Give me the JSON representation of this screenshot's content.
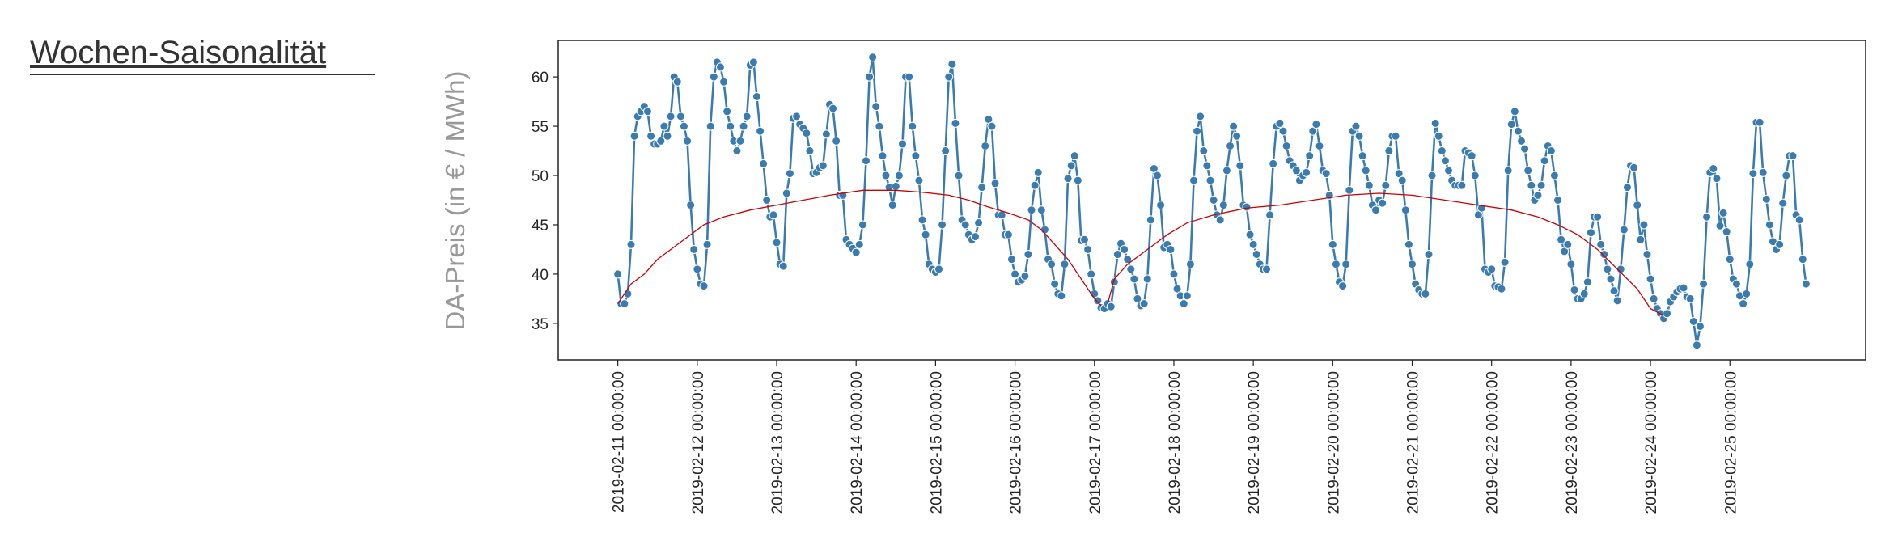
{
  "header": {
    "title": "Wochen-Saisonalität"
  },
  "chart_data": {
    "type": "line",
    "ylabel": "DA-Preis (in € / MWh)",
    "xlim": [
      "2019-02-10 06:00:00",
      "2019-02-26 17:00:00"
    ],
    "xticks": [
      "2019-02-11 00:00:00",
      "2019-02-12 00:00:00",
      "2019-02-13 00:00:00",
      "2019-02-14 00:00:00",
      "2019-02-15 00:00:00",
      "2019-02-16 00:00:00",
      "2019-02-17 00:00:00",
      "2019-02-18 00:00:00",
      "2019-02-19 00:00:00",
      "2019-02-20 00:00:00",
      "2019-02-21 00:00:00",
      "2019-02-22 00:00:00",
      "2019-02-23 00:00:00",
      "2019-02-24 00:00:00",
      "2019-02-25 00:00:00"
    ],
    "ylim": [
      31.3,
      63.7
    ],
    "yticks": [
      35,
      40,
      45,
      50,
      55,
      60
    ],
    "grid": false,
    "x": [
      "2019-02-11 00:00:00",
      "2019-02-11 01:00:00",
      "2019-02-11 02:00:00",
      "2019-02-11 03:00:00",
      "2019-02-11 04:00:00",
      "2019-02-11 05:00:00",
      "2019-02-11 06:00:00",
      "2019-02-11 07:00:00",
      "2019-02-11 08:00:00",
      "2019-02-11 09:00:00",
      "2019-02-11 10:00:00",
      "2019-02-11 11:00:00",
      "2019-02-11 12:00:00",
      "2019-02-11 13:00:00",
      "2019-02-11 14:00:00",
      "2019-02-11 15:00:00",
      "2019-02-11 16:00:00",
      "2019-02-11 17:00:00",
      "2019-02-11 18:00:00",
      "2019-02-11 19:00:00",
      "2019-02-11 20:00:00",
      "2019-02-11 21:00:00",
      "2019-02-11 22:00:00",
      "2019-02-11 23:00:00",
      "2019-02-12 00:00:00",
      "2019-02-12 01:00:00",
      "2019-02-12 02:00:00",
      "2019-02-12 03:00:00",
      "2019-02-12 04:00:00",
      "2019-02-12 05:00:00",
      "2019-02-12 06:00:00",
      "2019-02-12 07:00:00",
      "2019-02-12 08:00:00",
      "2019-02-12 09:00:00",
      "2019-02-12 10:00:00",
      "2019-02-12 11:00:00",
      "2019-02-12 12:00:00",
      "2019-02-12 13:00:00",
      "2019-02-12 14:00:00",
      "2019-02-12 15:00:00",
      "2019-02-12 16:00:00",
      "2019-02-12 17:00:00",
      "2019-02-12 18:00:00",
      "2019-02-12 19:00:00",
      "2019-02-12 20:00:00",
      "2019-02-12 21:00:00",
      "2019-02-12 22:00:00",
      "2019-02-12 23:00:00",
      "2019-02-13 00:00:00",
      "2019-02-13 01:00:00",
      "2019-02-13 02:00:00",
      "2019-02-13 03:00:00",
      "2019-02-13 04:00:00",
      "2019-02-13 05:00:00",
      "2019-02-13 06:00:00",
      "2019-02-13 07:00:00",
      "2019-02-13 08:00:00",
      "2019-02-13 09:00:00",
      "2019-02-13 10:00:00",
      "2019-02-13 11:00:00",
      "2019-02-13 12:00:00",
      "2019-02-13 13:00:00",
      "2019-02-13 14:00:00",
      "2019-02-13 15:00:00",
      "2019-02-13 16:00:00",
      "2019-02-13 17:00:00",
      "2019-02-13 18:00:00",
      "2019-02-13 19:00:00",
      "2019-02-13 20:00:00",
      "2019-02-13 21:00:00",
      "2019-02-13 22:00:00",
      "2019-02-13 23:00:00",
      "2019-02-14 00:00:00",
      "2019-02-14 01:00:00",
      "2019-02-14 02:00:00",
      "2019-02-14 03:00:00",
      "2019-02-14 04:00:00",
      "2019-02-14 05:00:00",
      "2019-02-14 06:00:00",
      "2019-02-14 07:00:00",
      "2019-02-14 08:00:00",
      "2019-02-14 09:00:00",
      "2019-02-14 10:00:00",
      "2019-02-14 11:00:00",
      "2019-02-14 12:00:00",
      "2019-02-14 13:00:00",
      "2019-02-14 14:00:00",
      "2019-02-14 15:00:00",
      "2019-02-14 16:00:00",
      "2019-02-14 17:00:00",
      "2019-02-14 18:00:00",
      "2019-02-14 19:00:00",
      "2019-02-14 20:00:00",
      "2019-02-14 21:00:00",
      "2019-02-14 22:00:00",
      "2019-02-14 23:00:00",
      "2019-02-15 00:00:00",
      "2019-02-15 01:00:00",
      "2019-02-15 02:00:00",
      "2019-02-15 03:00:00",
      "2019-02-15 04:00:00",
      "2019-02-15 05:00:00",
      "2019-02-15 06:00:00",
      "2019-02-15 07:00:00",
      "2019-02-15 08:00:00",
      "2019-02-15 09:00:00",
      "2019-02-15 10:00:00",
      "2019-02-15 11:00:00",
      "2019-02-15 12:00:00",
      "2019-02-15 13:00:00",
      "2019-02-15 14:00:00",
      "2019-02-15 15:00:00",
      "2019-02-15 16:00:00",
      "2019-02-15 17:00:00",
      "2019-02-15 18:00:00",
      "2019-02-15 19:00:00",
      "2019-02-15 20:00:00",
      "2019-02-15 21:00:00",
      "2019-02-15 22:00:00",
      "2019-02-15 23:00:00",
      "2019-02-16 00:00:00",
      "2019-02-16 01:00:00",
      "2019-02-16 02:00:00",
      "2019-02-16 03:00:00",
      "2019-02-16 04:00:00",
      "2019-02-16 05:00:00",
      "2019-02-16 06:00:00",
      "2019-02-16 07:00:00",
      "2019-02-16 08:00:00",
      "2019-02-16 09:00:00",
      "2019-02-16 10:00:00",
      "2019-02-16 11:00:00",
      "2019-02-16 12:00:00",
      "2019-02-16 13:00:00",
      "2019-02-16 14:00:00",
      "2019-02-16 15:00:00",
      "2019-02-16 16:00:00",
      "2019-02-16 17:00:00",
      "2019-02-16 18:00:00",
      "2019-02-16 19:00:00",
      "2019-02-16 20:00:00",
      "2019-02-16 21:00:00",
      "2019-02-16 22:00:00",
      "2019-02-16 23:00:00",
      "2019-02-17 00:00:00",
      "2019-02-17 01:00:00",
      "2019-02-17 02:00:00",
      "2019-02-17 03:00:00",
      "2019-02-17 04:00:00",
      "2019-02-17 05:00:00",
      "2019-02-17 06:00:00",
      "2019-02-17 07:00:00",
      "2019-02-17 08:00:00",
      "2019-02-17 09:00:00",
      "2019-02-17 10:00:00",
      "2019-02-17 11:00:00",
      "2019-02-17 12:00:00",
      "2019-02-17 13:00:00",
      "2019-02-17 14:00:00",
      "2019-02-17 15:00:00",
      "2019-02-17 16:00:00",
      "2019-02-17 17:00:00",
      "2019-02-17 18:00:00",
      "2019-02-17 19:00:00",
      "2019-02-17 20:00:00",
      "2019-02-17 21:00:00",
      "2019-02-17 22:00:00",
      "2019-02-17 23:00:00",
      "2019-02-18 00:00:00",
      "2019-02-18 01:00:00",
      "2019-02-18 02:00:00",
      "2019-02-18 03:00:00",
      "2019-02-18 04:00:00",
      "2019-02-18 05:00:00",
      "2019-02-18 06:00:00",
      "2019-02-18 07:00:00",
      "2019-02-18 08:00:00",
      "2019-02-18 09:00:00",
      "2019-02-18 10:00:00",
      "2019-02-18 11:00:00",
      "2019-02-18 12:00:00",
      "2019-02-18 13:00:00",
      "2019-02-18 14:00:00",
      "2019-02-18 15:00:00",
      "2019-02-18 16:00:00",
      "2019-02-18 17:00:00",
      "2019-02-18 18:00:00",
      "2019-02-18 19:00:00",
      "2019-02-18 20:00:00",
      "2019-02-18 21:00:00",
      "2019-02-18 22:00:00",
      "2019-02-18 23:00:00",
      "2019-02-19 00:00:00",
      "2019-02-19 01:00:00",
      "2019-02-19 02:00:00",
      "2019-02-19 03:00:00",
      "2019-02-19 04:00:00",
      "2019-02-19 05:00:00",
      "2019-02-19 06:00:00",
      "2019-02-19 07:00:00",
      "2019-02-19 08:00:00",
      "2019-02-19 09:00:00",
      "2019-02-19 10:00:00",
      "2019-02-19 11:00:00",
      "2019-02-19 12:00:00",
      "2019-02-19 13:00:00",
      "2019-02-19 14:00:00",
      "2019-02-19 15:00:00",
      "2019-02-19 16:00:00",
      "2019-02-19 17:00:00",
      "2019-02-19 18:00:00",
      "2019-02-19 19:00:00",
      "2019-02-19 20:00:00",
      "2019-02-19 21:00:00",
      "2019-02-19 22:00:00",
      "2019-02-19 23:00:00",
      "2019-02-20 00:00:00",
      "2019-02-20 01:00:00",
      "2019-02-20 02:00:00",
      "2019-02-20 03:00:00",
      "2019-02-20 04:00:00",
      "2019-02-20 05:00:00",
      "2019-02-20 06:00:00",
      "2019-02-20 07:00:00",
      "2019-02-20 08:00:00",
      "2019-02-20 09:00:00",
      "2019-02-20 10:00:00",
      "2019-02-20 11:00:00",
      "2019-02-20 12:00:00",
      "2019-02-20 13:00:00",
      "2019-02-20 14:00:00",
      "2019-02-20 15:00:00",
      "2019-02-20 16:00:00",
      "2019-02-20 17:00:00",
      "2019-02-20 18:00:00",
      "2019-02-20 19:00:00",
      "2019-02-20 20:00:00",
      "2019-02-20 21:00:00",
      "2019-02-20 22:00:00",
      "2019-02-20 23:00:00",
      "2019-02-21 00:00:00",
      "2019-02-21 01:00:00",
      "2019-02-21 02:00:00",
      "2019-02-21 03:00:00",
      "2019-02-21 04:00:00",
      "2019-02-21 05:00:00",
      "2019-02-21 06:00:00",
      "2019-02-21 07:00:00",
      "2019-02-21 08:00:00",
      "2019-02-21 09:00:00",
      "2019-02-21 10:00:00",
      "2019-02-21 11:00:00",
      "2019-02-21 12:00:00",
      "2019-02-21 13:00:00",
      "2019-02-21 14:00:00",
      "2019-02-21 15:00:00",
      "2019-02-21 16:00:00",
      "2019-02-21 17:00:00",
      "2019-02-21 18:00:00",
      "2019-02-21 19:00:00",
      "2019-02-21 20:00:00",
      "2019-02-21 21:00:00",
      "2019-02-21 22:00:00",
      "2019-02-21 23:00:00",
      "2019-02-22 00:00:00",
      "2019-02-22 01:00:00",
      "2019-02-22 02:00:00",
      "2019-02-22 03:00:00",
      "2019-02-22 04:00:00",
      "2019-02-22 05:00:00",
      "2019-02-22 06:00:00",
      "2019-02-22 07:00:00",
      "2019-02-22 08:00:00",
      "2019-02-22 09:00:00",
      "2019-02-22 10:00:00",
      "2019-02-22 11:00:00",
      "2019-02-22 12:00:00",
      "2019-02-22 13:00:00",
      "2019-02-22 14:00:00",
      "2019-02-22 15:00:00",
      "2019-02-22 16:00:00",
      "2019-02-22 17:00:00",
      "2019-02-22 18:00:00",
      "2019-02-22 19:00:00",
      "2019-02-22 20:00:00",
      "2019-02-22 21:00:00",
      "2019-02-22 22:00:00",
      "2019-02-22 23:00:00",
      "2019-02-23 00:00:00",
      "2019-02-23 01:00:00",
      "2019-02-23 02:00:00",
      "2019-02-23 03:00:00",
      "2019-02-23 04:00:00",
      "2019-02-23 05:00:00",
      "2019-02-23 06:00:00",
      "2019-02-23 07:00:00",
      "2019-02-23 08:00:00",
      "2019-02-23 09:00:00",
      "2019-02-23 10:00:00",
      "2019-02-23 11:00:00",
      "2019-02-23 12:00:00",
      "2019-02-23 13:00:00",
      "2019-02-23 14:00:00",
      "2019-02-23 15:00:00",
      "2019-02-23 16:00:00",
      "2019-02-23 17:00:00",
      "2019-02-23 18:00:00",
      "2019-02-23 19:00:00",
      "2019-02-23 20:00:00",
      "2019-02-23 21:00:00",
      "2019-02-23 22:00:00",
      "2019-02-23 23:00:00",
      "2019-02-24 00:00:00",
      "2019-02-24 01:00:00",
      "2019-02-24 02:00:00",
      "2019-02-24 03:00:00",
      "2019-02-24 04:00:00",
      "2019-02-24 05:00:00",
      "2019-02-24 06:00:00",
      "2019-02-24 07:00:00",
      "2019-02-24 08:00:00",
      "2019-02-24 09:00:00",
      "2019-02-24 10:00:00",
      "2019-02-24 11:00:00",
      "2019-02-24 12:00:00",
      "2019-02-24 13:00:00",
      "2019-02-24 14:00:00",
      "2019-02-24 15:00:00",
      "2019-02-24 16:00:00",
      "2019-02-24 17:00:00",
      "2019-02-24 18:00:00",
      "2019-02-24 19:00:00",
      "2019-02-24 20:00:00",
      "2019-02-24 21:00:00",
      "2019-02-24 22:00:00",
      "2019-02-24 23:00:00",
      "2019-02-25 00:00:00",
      "2019-02-25 01:00:00",
      "2019-02-25 02:00:00",
      "2019-02-25 03:00:00",
      "2019-02-25 04:00:00",
      "2019-02-25 05:00:00",
      "2019-02-25 06:00:00",
      "2019-02-25 07:00:00",
      "2019-02-25 08:00:00",
      "2019-02-25 09:00:00",
      "2019-02-25 10:00:00",
      "2019-02-25 11:00:00",
      "2019-02-25 12:00:00",
      "2019-02-25 13:00:00",
      "2019-02-25 14:00:00",
      "2019-02-25 15:00:00",
      "2019-02-25 16:00:00",
      "2019-02-25 17:00:00",
      "2019-02-25 18:00:00",
      "2019-02-25 19:00:00",
      "2019-02-25 20:00:00",
      "2019-02-25 21:00:00",
      "2019-02-25 22:00:00",
      "2019-02-25 23:00:00"
    ],
    "series": [
      {
        "color": "#3a7bb0",
        "marker": true,
        "values": [
          40,
          37,
          37,
          38,
          43,
          54,
          56,
          56.5,
          57,
          56.5,
          54,
          53.2,
          53.2,
          53.5,
          55,
          54,
          56,
          60,
          59.5,
          56,
          55,
          53.5,
          47,
          42.5,
          40.5,
          39,
          38.8,
          43,
          55,
          60,
          61.5,
          61,
          59.5,
          56.5,
          55,
          53.5,
          52.5,
          53.5,
          55,
          56,
          61.2,
          61.5,
          58,
          54.5,
          51.2,
          47.5,
          45.8,
          46,
          43.2,
          41,
          40.8,
          48.2,
          50.2,
          55.8,
          56,
          55.2,
          54.8,
          54.3,
          52.5,
          50.2,
          50.3,
          50.8,
          51,
          54.2,
          57.2,
          56.8,
          53.5,
          48,
          48,
          43.5,
          43,
          42.6,
          42.2,
          43,
          45,
          51.5,
          60,
          62,
          57,
          55,
          52,
          50,
          48.8,
          47,
          48.9,
          50,
          53.2,
          60,
          60,
          55,
          52,
          49.5,
          45.5,
          44,
          41,
          40.5,
          40.2,
          40.5,
          45,
          52.5,
          60,
          61.3,
          55.3,
          50,
          45.5,
          45,
          44,
          43.5,
          43.8,
          45.2,
          48.8,
          53,
          55.7,
          55,
          49.2,
          46,
          46,
          44,
          44,
          41.5,
          40,
          39.2,
          39.4,
          39.8,
          42,
          46.5,
          49,
          50.3,
          46.5,
          44.5,
          41.5,
          41,
          39,
          38,
          37.8,
          41,
          49.7,
          51,
          52,
          49.5,
          43.4,
          43.5,
          42.5,
          40,
          38,
          37.3,
          36.6,
          36.5,
          37,
          36.7,
          39.2,
          42,
          43.1,
          42.5,
          41.5,
          40.5,
          39.5,
          37.5,
          36.8,
          37,
          39.5,
          45.5,
          50.7,
          50,
          47,
          42.7,
          43,
          42.5,
          40,
          38.5,
          37.8,
          37,
          37.8,
          41,
          49.5,
          54.5,
          56,
          52.5,
          51,
          49.5,
          47.5,
          46,
          45.5,
          47,
          50.5,
          53,
          55,
          54,
          51,
          47,
          46.8,
          44,
          43,
          42,
          41,
          40.5,
          40.5,
          46,
          51.2,
          55,
          55.3,
          54.5,
          53,
          51.5,
          51,
          50.5,
          49.5,
          50,
          50.3,
          52,
          54.5,
          55.2,
          53,
          50.5,
          50.2,
          48,
          43,
          41,
          39.2,
          38.8,
          41,
          48.5,
          54.5,
          55,
          54,
          52,
          50.5,
          49,
          47,
          46.5,
          47.5,
          47.2,
          49,
          52.5,
          54,
          54,
          50.2,
          49.5,
          46.5,
          43,
          41,
          39,
          38.4,
          38,
          38,
          42,
          50,
          55.3,
          54,
          52.5,
          51.5,
          50.5,
          49.5,
          49,
          49,
          49,
          52.5,
          52.3,
          52,
          50,
          46,
          46.7,
          40.5,
          40.2,
          40.5,
          38.8,
          38.7,
          38.5,
          41.2,
          50.5,
          55.2,
          56.5,
          54.5,
          53.5,
          52.7,
          50.5,
          49,
          47.5,
          48,
          49,
          51.5,
          53,
          52.5,
          50,
          47.5,
          43.5,
          42.3,
          43,
          41,
          38.4,
          37.5,
          37.5,
          38,
          39.2,
          44.2,
          45.8,
          45.8,
          43,
          42,
          40.5,
          39.5,
          38.3,
          37.3,
          40.5,
          44.5,
          48.8,
          51,
          50.8,
          47,
          43.5,
          45,
          42,
          39.5,
          37.5,
          36.5,
          36,
          35.5,
          36,
          37.2,
          37.7,
          38.2,
          38.5,
          38.6,
          37.7,
          37.5,
          35.2,
          32.8,
          34.7,
          39,
          45.8,
          50.3,
          50.7,
          49.7,
          44.9,
          46.2,
          44.3,
          41.5,
          39.5,
          39,
          37.8,
          37,
          38,
          41,
          50.2,
          55.4,
          55.4,
          50.3,
          47.6,
          45,
          43.3,
          42.5,
          43,
          47.2,
          50,
          52,
          52,
          46,
          45.5,
          41.5,
          39
        ]
      },
      {
        "color": "#cc0000",
        "marker": false,
        "x": [
          "2019-02-11 00:00:00",
          "2019-02-11 04:00:00",
          "2019-02-11 08:00:00",
          "2019-02-11 12:00:00",
          "2019-02-11 16:00:00",
          "2019-02-11 20:00:00",
          "2019-02-12 02:00:00",
          "2019-02-12 08:00:00",
          "2019-02-12 16:00:00",
          "2019-02-13 00:00:00",
          "2019-02-13 08:00:00",
          "2019-02-13 16:00:00",
          "2019-02-14 02:00:00",
          "2019-02-14 12:00:00",
          "2019-02-14 20:00:00",
          "2019-02-15 04:00:00",
          "2019-02-15 10:00:00",
          "2019-02-15 16:00:00",
          "2019-02-15 22:00:00",
          "2019-02-16 04:00:00",
          "2019-02-16 08:00:00",
          "2019-02-16 12:00:00",
          "2019-02-16 16:00:00",
          "2019-02-16 20:00:00",
          "2019-02-17 00:00:00",
          "2019-02-17 02:00:00",
          "2019-02-17 03:00:00",
          "2019-02-17 04:00:00",
          "2019-02-17 06:00:00",
          "2019-02-17 10:00:00",
          "2019-02-17 16:00:00",
          "2019-02-17 22:00:00",
          "2019-02-18 04:00:00",
          "2019-02-18 12:00:00",
          "2019-02-18 22:00:00",
          "2019-02-19 08:00:00",
          "2019-02-19 18:00:00",
          "2019-02-20 04:00:00",
          "2019-02-20 14:00:00",
          "2019-02-21 00:00:00",
          "2019-02-21 10:00:00",
          "2019-02-21 20:00:00",
          "2019-02-22 06:00:00",
          "2019-02-22 14:00:00",
          "2019-02-22 20:00:00",
          "2019-02-23 02:00:00",
          "2019-02-23 08:00:00",
          "2019-02-23 14:00:00",
          "2019-02-23 20:00:00",
          "2019-02-24 00:00:00",
          "2019-02-24 04:00:00"
        ],
        "values": [
          37,
          39,
          40,
          41.5,
          42.5,
          43.5,
          45,
          45.8,
          46.5,
          47,
          47.5,
          48,
          48.5,
          48.5,
          48.3,
          48,
          47.5,
          46.8,
          46.2,
          45.5,
          44.5,
          43,
          41.5,
          39.5,
          37.5,
          36.8,
          null,
          37,
          39.5,
          41,
          42.5,
          44,
          45.2,
          46,
          46.7,
          47,
          47.5,
          48,
          48.2,
          48,
          47.5,
          47,
          46.5,
          45.8,
          45,
          44,
          42.5,
          40.5,
          38.5,
          36.5,
          35.8
        ]
      }
    ]
  }
}
